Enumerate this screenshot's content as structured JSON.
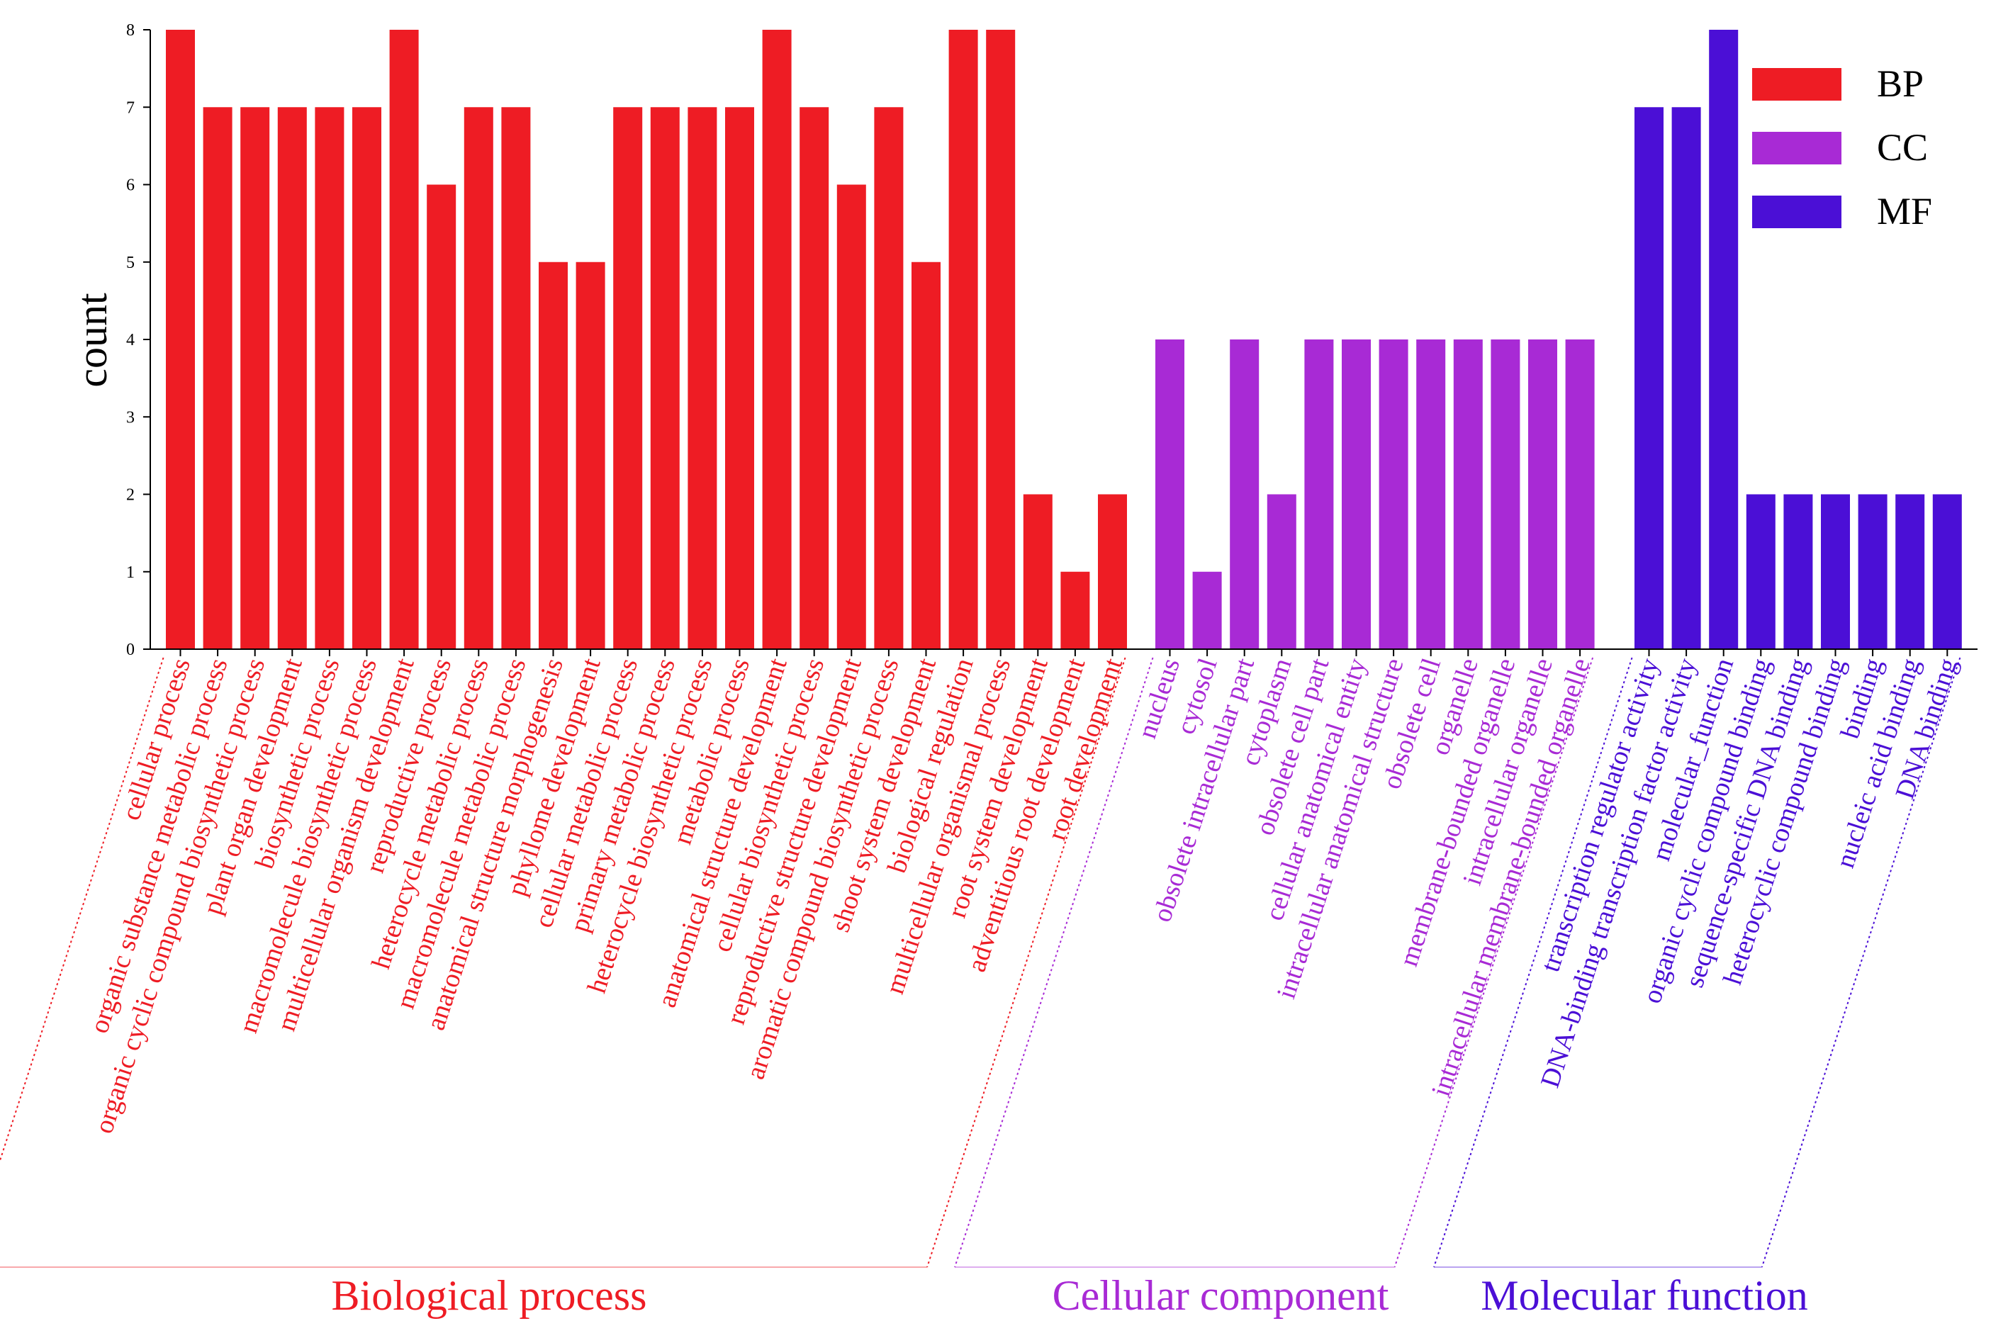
{
  "chart_data": {
    "type": "bar",
    "xlabel": "",
    "ylabel": "count",
    "ylim": [
      0,
      8
    ],
    "yticks": [
      0,
      1,
      2,
      3,
      4,
      5,
      6,
      7,
      8
    ],
    "grid": false,
    "legend": {
      "position": "top-right",
      "entries": [
        {
          "label": "BP",
          "color": "#ee1c24"
        },
        {
          "label": "CC",
          "color": "#a82ad5"
        },
        {
          "label": "MF",
          "color": "#4b0fd6"
        }
      ]
    },
    "groups": [
      {
        "name": "Biological process",
        "code": "BP",
        "color": "#ee1c24",
        "categories": [
          "cellular process",
          "organic substance metabolic process",
          "organic cyclic compound biosynthetic process",
          "plant organ development",
          "biosynthetic process",
          "macromolecule biosynthetic process",
          "multicellular organism development",
          "reproductive process",
          "heterocycle metabolic process",
          "macromolecule metabolic process",
          "anatomical structure morphogenesis",
          "phyllome development",
          "cellular metabolic process",
          "primary metabolic process",
          "heterocycle biosynthetic process",
          "metabolic process",
          "anatomical structure development",
          "cellular biosynthetic process",
          "reproductive structure development",
          "aromatic compound biosynthetic process",
          "shoot system development",
          "biological regulation",
          "multicellular organismal process",
          "root system development",
          "adventitious root development",
          "root development"
        ],
        "values": [
          8,
          7,
          7,
          7,
          7,
          7,
          8,
          6,
          7,
          7,
          5,
          5,
          7,
          7,
          7,
          7,
          8,
          7,
          6,
          7,
          5,
          8,
          8,
          2,
          1,
          2
        ]
      },
      {
        "name": "Cellular component",
        "code": "CC",
        "color": "#a82ad5",
        "categories": [
          "nucleus",
          "cytosol",
          "obsolete intracellular part",
          "cytoplasm",
          "obsolete cell part",
          "cellular anatomical entity",
          "intracellular anatomical structure",
          "obsolete cell",
          "organelle",
          "membrane-bounded organelle",
          "intracellular organelle",
          "intracellular membrane-bounded organelle"
        ],
        "values": [
          4,
          1,
          4,
          2,
          4,
          4,
          4,
          4,
          4,
          4,
          4,
          4
        ]
      },
      {
        "name": "Molecular function",
        "code": "MF",
        "color": "#4b0fd6",
        "categories": [
          "transcription regulator activity",
          "DNA-binding transcription factor activity",
          "molecular_function",
          "organic cyclic compound binding",
          "sequence-specific DNA binding",
          "heterocyclic compound binding",
          "binding",
          "nucleic acid binding",
          "DNA binding"
        ],
        "values": [
          7,
          7,
          8,
          2,
          2,
          2,
          2,
          2,
          2
        ]
      }
    ]
  }
}
